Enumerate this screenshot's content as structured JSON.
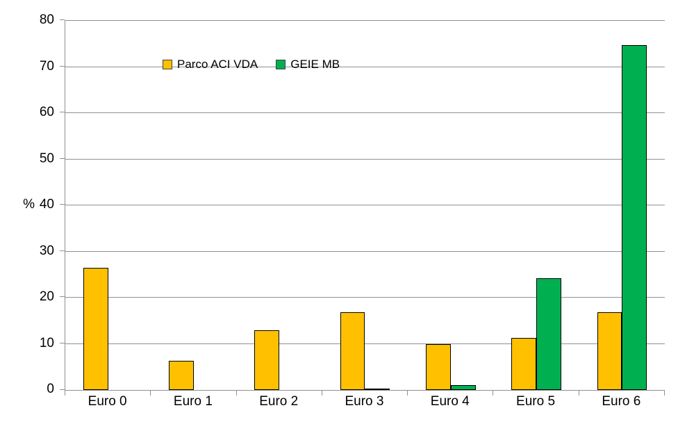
{
  "chart_data": {
    "type": "bar",
    "title": "",
    "xlabel": "",
    "ylabel": "%",
    "categories": [
      "Euro 0",
      "Euro 1",
      "Euro 2",
      "Euro 3",
      "Euro 4",
      "Euro 5",
      "Euro 6"
    ],
    "series": [
      {
        "name": "Parco ACI VDA",
        "color": "#FFC000",
        "values": [
          26.4,
          6.3,
          13.0,
          16.9,
          9.9,
          11.3,
          16.8
        ]
      },
      {
        "name": "GEIE MB",
        "color": "#00B050",
        "values": [
          0,
          0,
          0,
          0.3,
          1.1,
          24.2,
          74.8
        ]
      }
    ],
    "ylim": [
      0,
      80
    ],
    "y_ticks": [
      0,
      10,
      20,
      30,
      40,
      50,
      60,
      70,
      80
    ],
    "grid": true,
    "legend_position": "inside-top-left",
    "gridline_color": "#8f8f8f",
    "outline_color": "#000000"
  }
}
